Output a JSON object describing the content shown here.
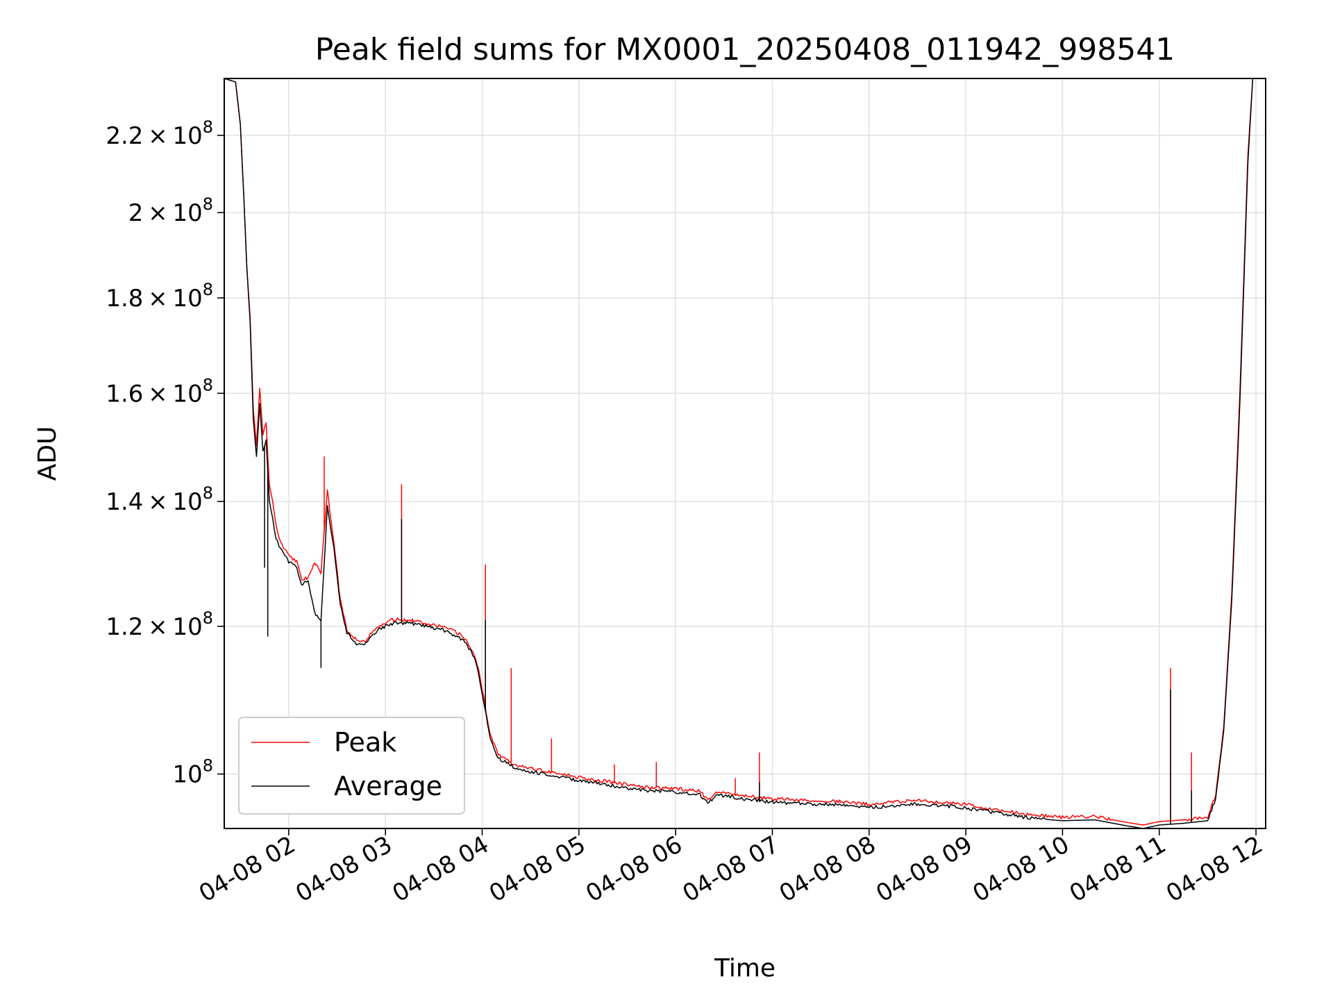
{
  "chart_data": {
    "type": "line",
    "title": "Peak field sums for MX0001_20250408_011942_998541",
    "xlabel": "Time",
    "ylabel": "ADU",
    "y_scale": "log",
    "ylim": [
      93500000,
      236000000
    ],
    "xlim": [
      "2025-04-08 01:20",
      "2025-04-08 12:06"
    ],
    "grid": true,
    "legend_position": "lower-left",
    "x_ticks": [
      {
        "x": "2025-04-08 02:00",
        "label": "04-08 02"
      },
      {
        "x": "2025-04-08 03:00",
        "label": "04-08 03"
      },
      {
        "x": "2025-04-08 04:00",
        "label": "04-08 04"
      },
      {
        "x": "2025-04-08 05:00",
        "label": "04-08 05"
      },
      {
        "x": "2025-04-08 06:00",
        "label": "04-08 06"
      },
      {
        "x": "2025-04-08 07:00",
        "label": "04-08 07"
      },
      {
        "x": "2025-04-08 08:00",
        "label": "04-08 08"
      },
      {
        "x": "2025-04-08 09:00",
        "label": "04-08 09"
      },
      {
        "x": "2025-04-08 10:00",
        "label": "04-08 10"
      },
      {
        "x": "2025-04-08 11:00",
        "label": "04-08 11"
      },
      {
        "x": "2025-04-08 12:00",
        "label": "04-08 12"
      }
    ],
    "y_ticks": [
      {
        "value": 100000000,
        "mantissa": "",
        "exponent": "8"
      },
      {
        "value": 120000000,
        "mantissa": "1.2",
        "exponent": "8"
      },
      {
        "value": 140000000,
        "mantissa": "1.4",
        "exponent": "8"
      },
      {
        "value": 160000000,
        "mantissa": "1.6",
        "exponent": "8"
      },
      {
        "value": 180000000,
        "mantissa": "1.8",
        "exponent": "8"
      },
      {
        "value": 200000000,
        "mantissa": "2",
        "exponent": "8"
      },
      {
        "value": 220000000,
        "mantissa": "2.2",
        "exponent": "8"
      }
    ],
    "series": [
      {
        "name": "Peak",
        "color": "#ff0000",
        "points": [
          [
            "2025-04-08 01:20",
            236000000
          ],
          [
            "2025-04-08 01:27",
            235000000
          ],
          [
            "2025-04-08 01:30",
            223000000
          ],
          [
            "2025-04-08 01:32",
            205000000
          ],
          [
            "2025-04-08 01:34",
            187000000
          ],
          [
            "2025-04-08 01:36",
            176000000
          ],
          [
            "2025-04-08 01:38",
            157000000
          ],
          [
            "2025-04-08 01:40",
            150000000
          ],
          [
            "2025-04-08 01:42",
            161000000
          ],
          [
            "2025-04-08 01:44",
            152000000
          ],
          [
            "2025-04-08 01:46",
            154000000
          ],
          [
            "2025-04-08 01:48",
            143000000
          ],
          [
            "2025-04-08 01:50",
            140000000
          ],
          [
            "2025-04-08 01:52",
            136000000
          ],
          [
            "2025-04-08 01:55",
            133000000
          ],
          [
            "2025-04-08 02:00",
            131000000
          ],
          [
            "2025-04-08 02:05",
            130000000
          ],
          [
            "2025-04-08 02:08",
            127000000
          ],
          [
            "2025-04-08 02:12",
            127500000
          ],
          [
            "2025-04-08 02:16",
            130000000
          ],
          [
            "2025-04-08 02:20",
            128000000
          ],
          [
            "2025-04-08 02:24",
            142000000
          ],
          [
            "2025-04-08 02:28",
            133000000
          ],
          [
            "2025-04-08 02:32",
            124000000
          ],
          [
            "2025-04-08 02:36",
            119500000
          ],
          [
            "2025-04-08 02:42",
            118000000
          ],
          [
            "2025-04-08 02:48",
            118000000
          ],
          [
            "2025-04-08 02:55",
            120000000
          ],
          [
            "2025-04-08 03:05",
            121000000
          ],
          [
            "2025-04-08 03:15",
            121000000
          ],
          [
            "2025-04-08 03:25",
            120500000
          ],
          [
            "2025-04-08 03:35",
            120000000
          ],
          [
            "2025-04-08 03:45",
            119000000
          ],
          [
            "2025-04-08 03:50",
            118000000
          ],
          [
            "2025-04-08 03:55",
            116000000
          ],
          [
            "2025-04-08 03:58",
            113500000
          ],
          [
            "2025-04-08 04:00",
            111000000
          ],
          [
            "2025-04-08 04:05",
            105000000
          ],
          [
            "2025-04-08 04:10",
            102500000
          ],
          [
            "2025-04-08 04:20",
            101200000
          ],
          [
            "2025-04-08 04:30",
            100700000
          ],
          [
            "2025-04-08 04:45",
            100200000
          ],
          [
            "2025-04-08 05:00",
            99600000
          ],
          [
            "2025-04-08 05:20",
            99000000
          ],
          [
            "2025-04-08 05:40",
            98400000
          ],
          [
            "2025-04-08 06:00",
            98200000
          ],
          [
            "2025-04-08 06:15",
            97900000
          ],
          [
            "2025-04-08 06:20",
            96800000
          ],
          [
            "2025-04-08 06:25",
            97900000
          ],
          [
            "2025-04-08 06:40",
            97400000
          ],
          [
            "2025-04-08 07:00",
            97000000
          ],
          [
            "2025-04-08 07:20",
            96800000
          ],
          [
            "2025-04-08 07:40",
            96700000
          ],
          [
            "2025-04-08 08:00",
            96300000
          ],
          [
            "2025-04-08 08:20",
            96700000
          ],
          [
            "2025-04-08 08:40",
            96700000
          ],
          [
            "2025-04-08 09:00",
            96300000
          ],
          [
            "2025-04-08 09:20",
            95700000
          ],
          [
            "2025-04-08 09:40",
            95100000
          ],
          [
            "2025-04-08 10:00",
            94800000
          ],
          [
            "2025-04-08 10:20",
            94900000
          ],
          [
            "2025-04-08 10:40",
            94200000
          ],
          [
            "2025-04-08 10:50",
            93900000
          ],
          [
            "2025-04-08 11:00",
            94300000
          ],
          [
            "2025-04-08 11:15",
            94500000
          ],
          [
            "2025-04-08 11:30",
            94800000
          ],
          [
            "2025-04-08 11:35",
            97500000
          ],
          [
            "2025-04-08 11:40",
            106000000
          ],
          [
            "2025-04-08 11:45",
            125000000
          ],
          [
            "2025-04-08 11:50",
            160000000
          ],
          [
            "2025-04-08 11:55",
            215000000
          ],
          [
            "2025-04-08 11:58",
            236000000
          ]
        ],
        "spikes": [
          [
            "2025-04-08 02:22",
            148000000
          ],
          [
            "2025-04-08 03:10",
            143000000
          ],
          [
            "2025-04-08 04:02",
            129500000
          ],
          [
            "2025-04-08 04:18",
            114000000
          ],
          [
            "2025-04-08 04:43",
            104500000
          ],
          [
            "2025-04-08 05:22",
            101200000
          ],
          [
            "2025-04-08 05:48",
            101500000
          ],
          [
            "2025-04-08 06:37",
            99500000
          ],
          [
            "2025-04-08 06:52",
            102700000
          ],
          [
            "2025-04-08 11:07",
            114000000
          ],
          [
            "2025-04-08 11:20",
            102700000
          ]
        ]
      },
      {
        "name": "Average",
        "color": "#000000",
        "points": [
          [
            "2025-04-08 01:20",
            236000000
          ],
          [
            "2025-04-08 01:27",
            235000000
          ],
          [
            "2025-04-08 01:30",
            223000000
          ],
          [
            "2025-04-08 01:32",
            205000000
          ],
          [
            "2025-04-08 01:34",
            187000000
          ],
          [
            "2025-04-08 01:36",
            175000000
          ],
          [
            "2025-04-08 01:38",
            155000000
          ],
          [
            "2025-04-08 01:40",
            148000000
          ],
          [
            "2025-04-08 01:42",
            158000000
          ],
          [
            "2025-04-08 01:44",
            149000000
          ],
          [
            "2025-04-08 01:46",
            151000000
          ],
          [
            "2025-04-08 01:48",
            140000000
          ],
          [
            "2025-04-08 01:50",
            137000000
          ],
          [
            "2025-04-08 01:52",
            134000000
          ],
          [
            "2025-04-08 01:55",
            132000000
          ],
          [
            "2025-04-08 02:00",
            130000000
          ],
          [
            "2025-04-08 02:05",
            129000000
          ],
          [
            "2025-04-08 02:08",
            126500000
          ],
          [
            "2025-04-08 02:12",
            126800000
          ],
          [
            "2025-04-08 02:16",
            122000000
          ],
          [
            "2025-04-08 02:20",
            121000000
          ],
          [
            "2025-04-08 02:24",
            139000000
          ],
          [
            "2025-04-08 02:28",
            132000000
          ],
          [
            "2025-04-08 02:32",
            123500000
          ],
          [
            "2025-04-08 02:36",
            119000000
          ],
          [
            "2025-04-08 02:42",
            117500000
          ],
          [
            "2025-04-08 02:48",
            117500000
          ],
          [
            "2025-04-08 02:55",
            119500000
          ],
          [
            "2025-04-08 03:05",
            120500000
          ],
          [
            "2025-04-08 03:15",
            120500000
          ],
          [
            "2025-04-08 03:25",
            120000000
          ],
          [
            "2025-04-08 03:35",
            119500000
          ],
          [
            "2025-04-08 03:45",
            118500000
          ],
          [
            "2025-04-08 03:50",
            117500000
          ],
          [
            "2025-04-08 03:55",
            115500000
          ],
          [
            "2025-04-08 03:58",
            113000000
          ],
          [
            "2025-04-08 04:00",
            110500000
          ],
          [
            "2025-04-08 04:05",
            104500000
          ],
          [
            "2025-04-08 04:10",
            102000000
          ],
          [
            "2025-04-08 04:20",
            100800000
          ],
          [
            "2025-04-08 04:30",
            100300000
          ],
          [
            "2025-04-08 04:45",
            99800000
          ],
          [
            "2025-04-08 05:00",
            99200000
          ],
          [
            "2025-04-08 05:20",
            98600000
          ],
          [
            "2025-04-08 05:40",
            98000000
          ],
          [
            "2025-04-08 06:00",
            97800000
          ],
          [
            "2025-04-08 06:15",
            97500000
          ],
          [
            "2025-04-08 06:20",
            96400000
          ],
          [
            "2025-04-08 06:25",
            97500000
          ],
          [
            "2025-04-08 06:40",
            97000000
          ],
          [
            "2025-04-08 07:00",
            96600000
          ],
          [
            "2025-04-08 07:20",
            96400000
          ],
          [
            "2025-04-08 07:40",
            96300000
          ],
          [
            "2025-04-08 08:00",
            95900000
          ],
          [
            "2025-04-08 08:20",
            96300000
          ],
          [
            "2025-04-08 08:40",
            96300000
          ],
          [
            "2025-04-08 09:00",
            95900000
          ],
          [
            "2025-04-08 09:20",
            95300000
          ],
          [
            "2025-04-08 09:40",
            94700000
          ],
          [
            "2025-04-08 10:00",
            94400000
          ],
          [
            "2025-04-08 10:20",
            94500000
          ],
          [
            "2025-04-08 10:40",
            93800000
          ],
          [
            "2025-04-08 10:50",
            93500000
          ],
          [
            "2025-04-08 11:00",
            93900000
          ],
          [
            "2025-04-08 11:15",
            94100000
          ],
          [
            "2025-04-08 11:30",
            94400000
          ],
          [
            "2025-04-08 11:35",
            97000000
          ],
          [
            "2025-04-08 11:40",
            105500000
          ],
          [
            "2025-04-08 11:45",
            124000000
          ],
          [
            "2025-04-08 11:50",
            158000000
          ],
          [
            "2025-04-08 11:55",
            213000000
          ],
          [
            "2025-04-08 11:58",
            236000000
          ]
        ],
        "spikes": [
          [
            "2025-04-08 01:45",
            129000000
          ],
          [
            "2025-04-08 01:47",
            118500000
          ],
          [
            "2025-04-08 02:20",
            114000000
          ],
          [
            "2025-04-08 03:10",
            137000000
          ],
          [
            "2025-04-08 04:02",
            121000000
          ],
          [
            "2025-04-08 06:52",
            99000000
          ],
          [
            "2025-04-08 11:07",
            111000000
          ],
          [
            "2025-04-08 11:20",
            98000000
          ]
        ]
      }
    ]
  }
}
